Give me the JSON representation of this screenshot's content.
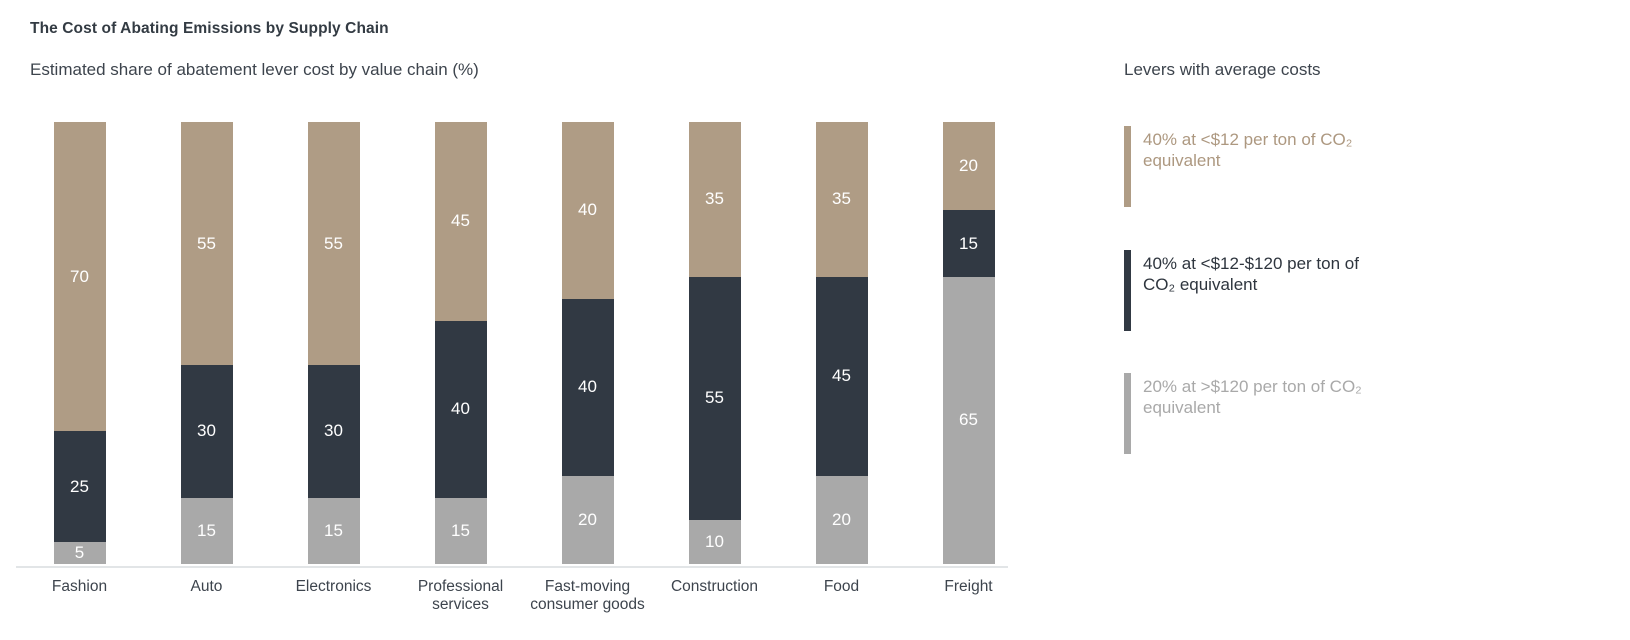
{
  "title": "The Cost of Abating Emissions by Supply Chain",
  "subtitle": "Estimated share of abatement lever cost by value chain (%)",
  "legend": {
    "header": "Levers with average costs",
    "items": [
      {
        "label": "40% at <$12 per ton of CO₂ equivalent",
        "color": "#af9c85",
        "text_color": "#ad9880"
      },
      {
        "label": "40% at <$12-$120 per ton of CO₂ equivalent",
        "color": "#313943",
        "text_color": "#2e353e"
      },
      {
        "label": "20% at >$120 per ton of CO₂ equivalent",
        "color": "#a9a9a9",
        "text_color": "#a9a9a9"
      }
    ]
  },
  "chart_data": {
    "type": "bar",
    "stacked": true,
    "title": "The Cost of Abating Emissions by Supply Chain",
    "subtitle": "Estimated share of abatement lever cost by value chain (%)",
    "categories": [
      "Fashion",
      "Auto",
      "Electronics",
      "Professional services",
      "Fast-moving consumer goods",
      "Construction",
      "Food",
      "Freight"
    ],
    "series": [
      {
        "name": "20% at >$120 per ton of CO₂ equivalent",
        "color": "#a9a9a9",
        "values": [
          5,
          15,
          15,
          15,
          20,
          10,
          20,
          65
        ]
      },
      {
        "name": "40% at <$12-$120 per ton of CO₂ equivalent",
        "color": "#313943",
        "values": [
          25,
          30,
          30,
          40,
          40,
          55,
          45,
          15
        ]
      },
      {
        "name": "40% at <$12 per ton of CO₂ equivalent",
        "color": "#af9c85",
        "values": [
          70,
          55,
          55,
          45,
          40,
          35,
          35,
          20
        ]
      }
    ],
    "ylim": [
      0,
      100
    ],
    "xlabel": "",
    "ylabel": "",
    "grid": false,
    "value_labels": "inside-white",
    "legend_position": "right"
  },
  "colors": {
    "background": "#ffffff",
    "title_text": "#333b43",
    "body_text": "#3d444d",
    "axis_line": "#e2e5e7",
    "bar_value_text": "#ffffff"
  }
}
